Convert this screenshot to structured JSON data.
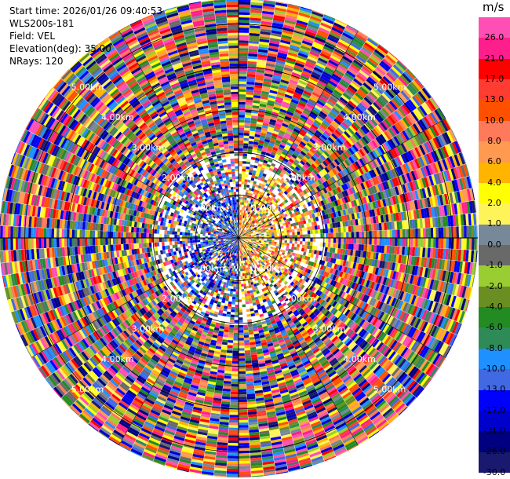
{
  "info": {
    "start_time": "Start time: 2026/01/26 09:40:53",
    "instrument": "WLS200s-181",
    "field": "Field: VEL",
    "elevation": "Elevation(deg): 35.00",
    "nrays": "NRays: 120"
  },
  "colorbar": {
    "unit": "m/s",
    "segments": [
      {
        "label": "26.0",
        "color": "#ff4fb4"
      },
      {
        "label": "21.0",
        "color": "#ff1f8c"
      },
      {
        "label": "17.0",
        "color": "#ff0000"
      },
      {
        "label": "13.0",
        "color": "#ff3c32"
      },
      {
        "label": "10.0",
        "color": "#ff5000"
      },
      {
        "label": "8.0",
        "color": "#ff7a5a"
      },
      {
        "label": "6.0",
        "color": "#ff9a50"
      },
      {
        "label": "4.0",
        "color": "#ffb400"
      },
      {
        "label": "2.0",
        "color": "#ffff00"
      },
      {
        "label": "1.0",
        "color": "#fff35a"
      },
      {
        "label": "0.0",
        "color": "#778899"
      },
      {
        "label": "-1.0",
        "color": "#696969"
      },
      {
        "label": "-2.0",
        "color": "#9acd32"
      },
      {
        "label": "-4.0",
        "color": "#6b8e23"
      },
      {
        "label": "-6.0",
        "color": "#228b22"
      },
      {
        "label": "-8.0",
        "color": "#2e8b57"
      },
      {
        "label": "-10.0",
        "color": "#1e90ff"
      },
      {
        "label": "-13.0",
        "color": "#4169e1"
      },
      {
        "label": "-17.0",
        "color": "#0000ff"
      },
      {
        "label": "-21.0",
        "color": "#0000cd"
      },
      {
        "label": "-26.0",
        "color": "#000080"
      },
      {
        "label": "-30.0",
        "color": "#191970"
      }
    ]
  },
  "range_labels": [
    "1.00km",
    "2.00km",
    "3.00km",
    "4.00km",
    "5.00km"
  ],
  "chart_data": {
    "type": "heatmap",
    "title": "",
    "field": "VEL",
    "unit": "m/s",
    "elevation_deg": 35.0,
    "nrays": 120,
    "max_range_km": 5.6,
    "range_rings_km": [
      1,
      2,
      3,
      4,
      5
    ],
    "color_scale_m_s": [
      -30,
      -26,
      -21,
      -17,
      -13,
      -10,
      -8,
      -6,
      -4,
      -2,
      -1,
      0,
      1,
      2,
      4,
      6,
      8,
      10,
      13,
      17,
      21,
      26
    ],
    "near_field": {
      "range_km": [
        0,
        1.8
      ],
      "west_side": "negative (blue, approx -13 to -17 m/s)",
      "east_side": "positive (orange/yellow, approx 4 to 13 m/s)"
    },
    "far_field": "noise (random colors across full scale)"
  }
}
